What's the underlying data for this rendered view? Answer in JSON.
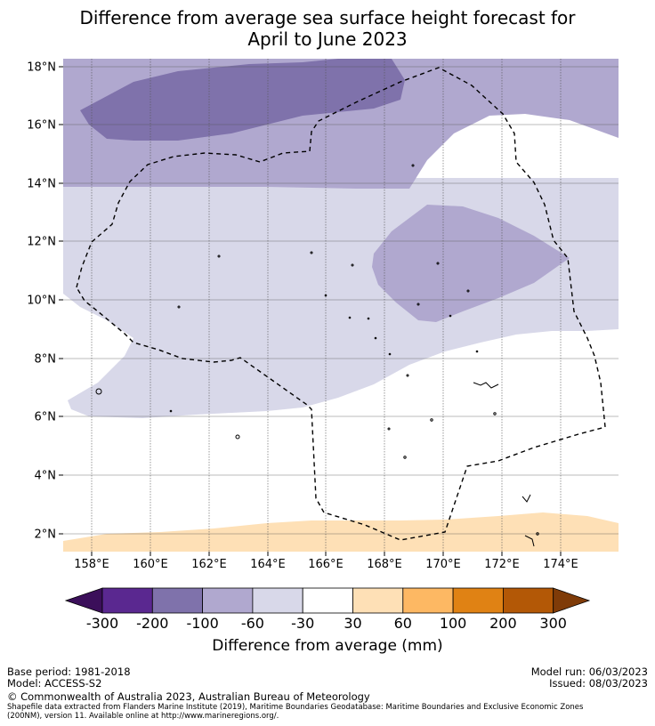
{
  "title": {
    "line1": "Difference from average sea surface height forecast for",
    "line2": "April to June 2023"
  },
  "map": {
    "lat_ticks": [
      "18°N",
      "16°N",
      "14°N",
      "12°N",
      "10°N",
      "8°N",
      "6°N",
      "4°N",
      "2°N"
    ],
    "lon_ticks": [
      "158°E",
      "160°E",
      "162°E",
      "164°E",
      "166°E",
      "168°E",
      "170°E",
      "172°E",
      "174°E"
    ],
    "region_outline": "dashed EEZ boundary",
    "colors": {
      "-200 to -100": "#7f72ab",
      "-100 to -60": "#b0a8cf",
      "-60 to -30": "#d8d8e9",
      "-30 to 30": "#ffffff",
      "30 to 60": "#fee0b6",
      "ocean_default": "#ffffff"
    }
  },
  "colorbar": {
    "tick_labels": [
      "-300",
      "-200",
      "-100",
      "-60",
      "-30",
      "30",
      "60",
      "100",
      "200",
      "300"
    ],
    "colors": [
      "#3b0f5a",
      "#5a2890",
      "#7f72ab",
      "#b0a8cf",
      "#d8d8e9",
      "#ffffff",
      "#fee0b6",
      "#fdb863",
      "#e08214",
      "#b35806",
      "#7f3b08"
    ],
    "label": "Difference from average (mm)"
  },
  "footer": {
    "base_period": "Base period: 1981-2018",
    "model": "Model: ACCESS-S2",
    "model_run": "Model run: 06/03/2023",
    "issued": "Issued: 08/03/2023",
    "copyright": "© Commonwealth of Australia 2023, Australian Bureau of Meteorology",
    "source1": "Shapefile data extracted from Flanders Marine Institute (2019), Maritime Boundaries Geodatabase: Maritime Boundaries and Exclusive Economic Zones",
    "source2": "(200NM), version 11. Available online at http://www.marineregions.org/."
  }
}
